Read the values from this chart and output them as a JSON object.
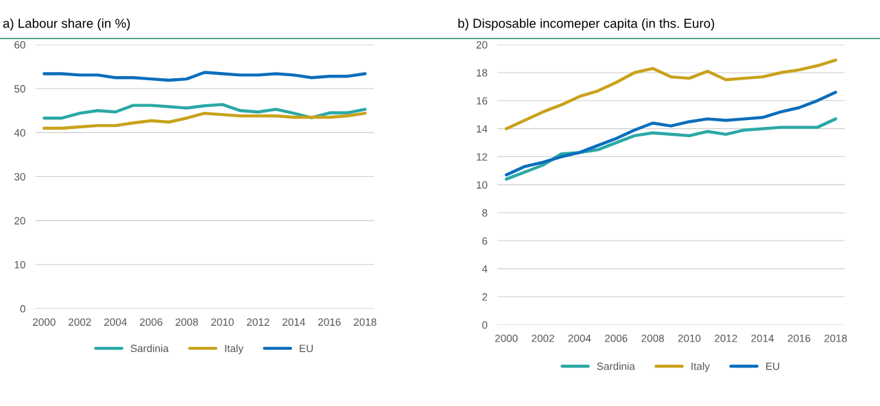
{
  "chart_data": [
    {
      "type": "line",
      "title": "a) Labour share (in %)",
      "x": [
        2000,
        2001,
        2002,
        2003,
        2004,
        2005,
        2006,
        2007,
        2008,
        2009,
        2010,
        2011,
        2012,
        2013,
        2014,
        2015,
        2016,
        2017,
        2018
      ],
      "series": [
        {
          "name": "Sardinia",
          "color": "#2aa8a6",
          "values": [
            43.3,
            43.3,
            44.4,
            45.0,
            44.7,
            46.2,
            46.2,
            45.9,
            45.6,
            46.1,
            46.4,
            45.0,
            44.7,
            45.3,
            44.4,
            43.4,
            44.5,
            44.5,
            45.3
          ]
        },
        {
          "name": "Italy",
          "color": "#c9a21c",
          "values": [
            41.0,
            41.0,
            41.3,
            41.6,
            41.6,
            42.2,
            42.7,
            42.4,
            43.3,
            44.4,
            44.1,
            43.8,
            43.8,
            43.8,
            43.5,
            43.5,
            43.5,
            43.8,
            44.4
          ]
        },
        {
          "name": "EU",
          "color": "#0a6ebd",
          "values": [
            53.4,
            53.4,
            53.1,
            53.1,
            52.5,
            52.5,
            52.2,
            51.9,
            52.2,
            53.7,
            53.4,
            53.1,
            53.1,
            53.4,
            53.1,
            52.5,
            52.8,
            52.8,
            53.4
          ]
        }
      ],
      "xlim": [
        1999.5,
        2018.5
      ],
      "xticks": [
        2000,
        2002,
        2004,
        2006,
        2008,
        2010,
        2012,
        2014,
        2016,
        2018
      ],
      "ylim": [
        0,
        60
      ],
      "yticks": [
        0,
        10,
        20,
        30,
        40,
        50,
        60
      ],
      "grid": "y",
      "legend": "bottom",
      "line_style": "solid",
      "marker": "none"
    },
    {
      "type": "line",
      "title": "b) Disposable incomeper capita (in ths. Euro)",
      "x": [
        2000,
        2001,
        2002,
        2003,
        2004,
        2005,
        2006,
        2007,
        2008,
        2009,
        2010,
        2011,
        2012,
        2013,
        2014,
        2015,
        2016,
        2017,
        2018
      ],
      "series": [
        {
          "name": "Sardinia",
          "color": "#2aa8a6",
          "values": [
            10.4,
            10.9,
            11.4,
            12.2,
            12.3,
            12.5,
            13.0,
            13.5,
            13.7,
            13.6,
            13.5,
            13.8,
            13.6,
            13.9,
            14.0,
            14.1,
            14.1,
            14.1,
            14.7
          ]
        },
        {
          "name": "Italy",
          "color": "#c9a21c",
          "values": [
            14.0,
            14.6,
            15.2,
            15.7,
            16.3,
            16.7,
            17.3,
            18.0,
            18.3,
            17.7,
            17.6,
            18.1,
            17.5,
            17.6,
            17.7,
            18.0,
            18.2,
            18.5,
            18.9
          ]
        },
        {
          "name": "EU",
          "color": "#0a6ebd",
          "values": [
            10.7,
            11.3,
            11.6,
            12.0,
            12.3,
            12.8,
            13.3,
            13.9,
            14.4,
            14.2,
            14.5,
            14.7,
            14.6,
            14.7,
            14.8,
            15.2,
            15.5,
            16.0,
            16.6
          ]
        }
      ],
      "xlim": [
        1999.5,
        2018.5
      ],
      "xticks": [
        2000,
        2002,
        2004,
        2006,
        2008,
        2010,
        2012,
        2014,
        2016,
        2018
      ],
      "ylim": [
        0,
        20
      ],
      "yticks": [
        0,
        2,
        4,
        6,
        8,
        10,
        12,
        14,
        16,
        18,
        20
      ],
      "grid": "y",
      "legend": "bottom",
      "line_style": "solid",
      "marker": "none"
    }
  ]
}
